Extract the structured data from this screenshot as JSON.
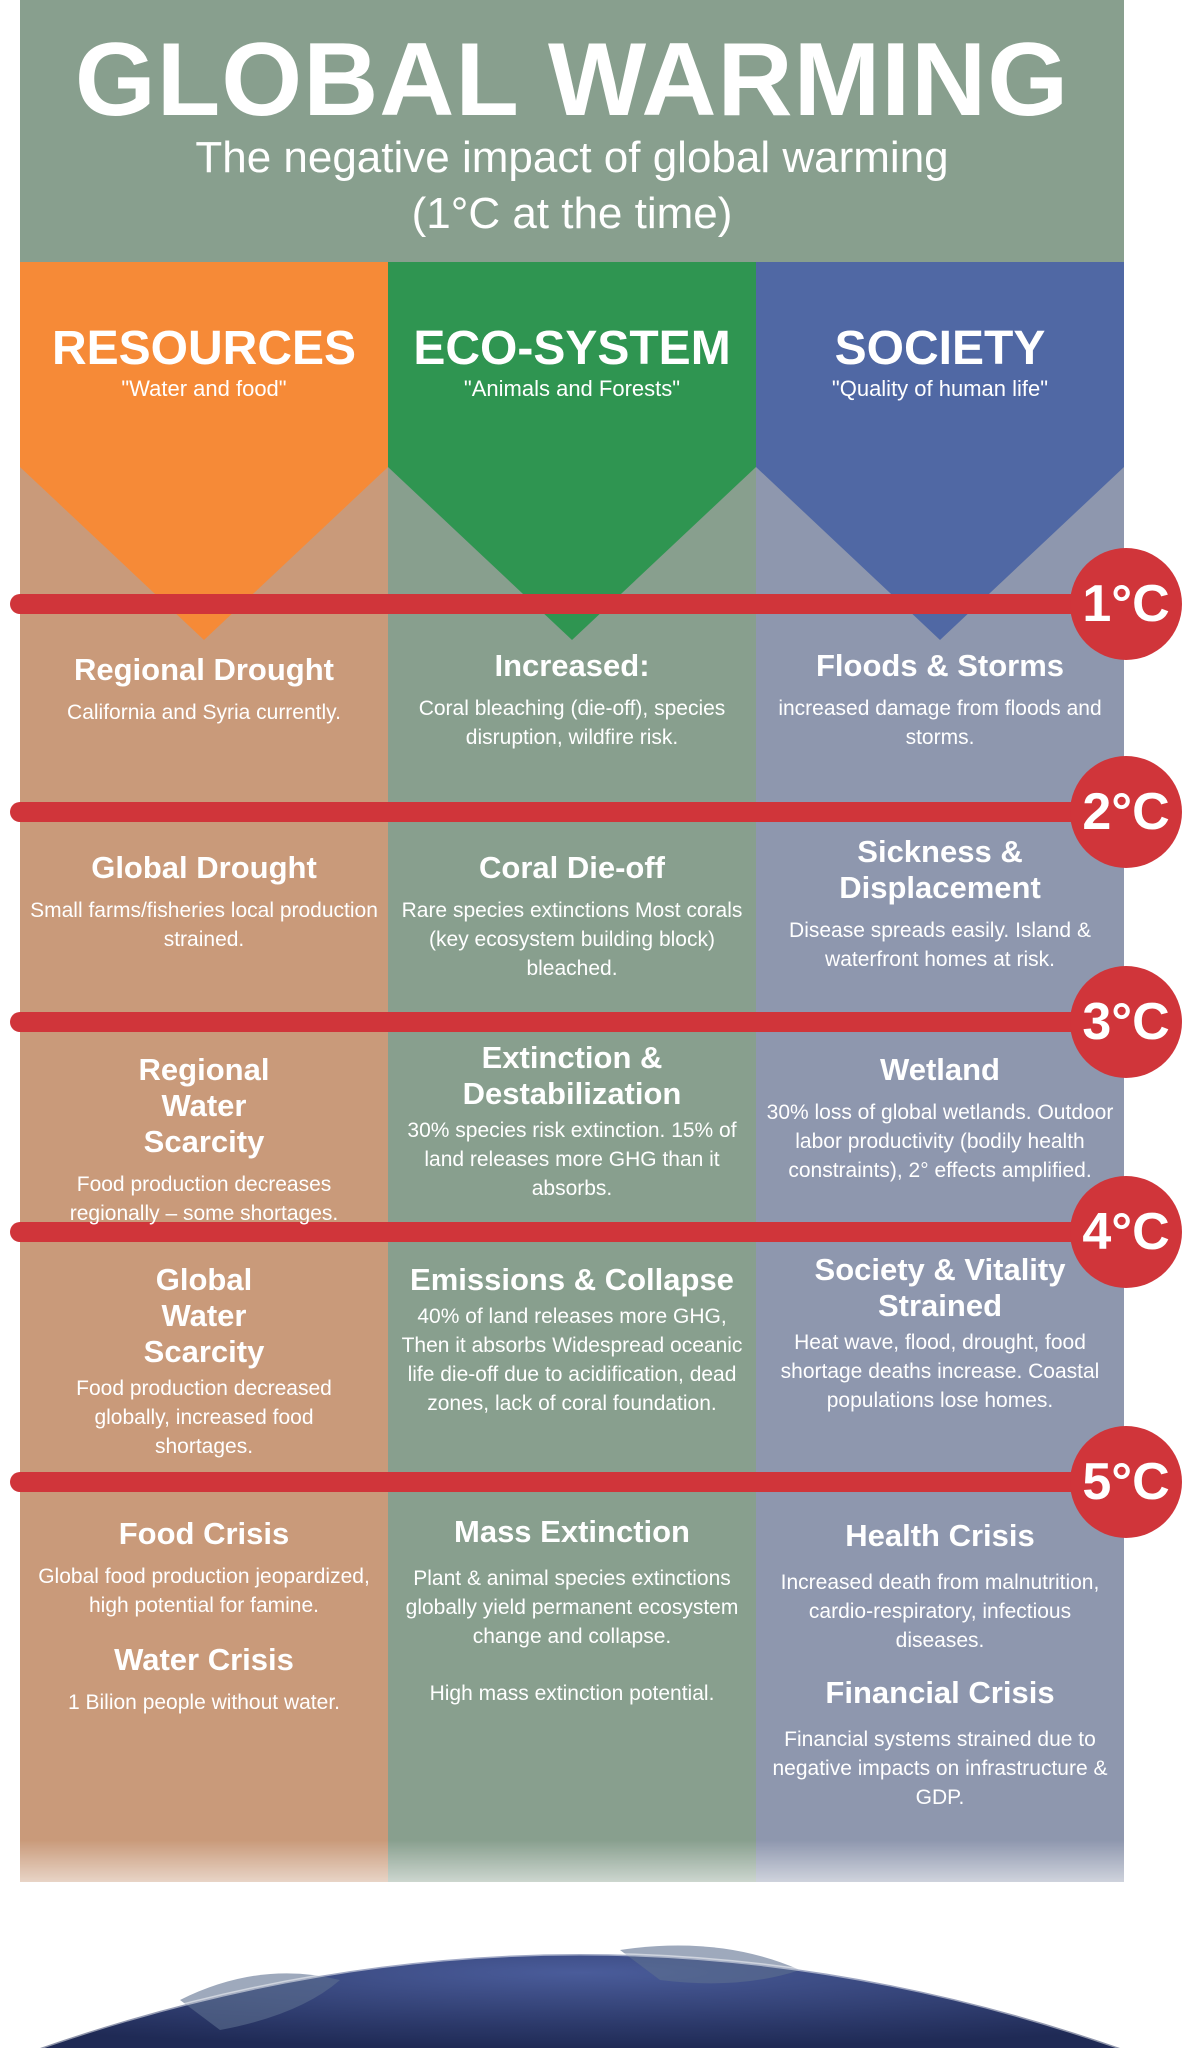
{
  "header": {
    "title": "GLOBAL WARMING",
    "subtitle_line1": "The negative impact of global warming",
    "subtitle_line2": "(1°C at the time)"
  },
  "colors": {
    "resources": "#f68a37",
    "ecosystem": "#2f9551",
    "society": "#5068a4",
    "bar": "#d0353a",
    "header_bg": "#889f8e"
  },
  "columns": {
    "resources": {
      "title": "RESOURCES",
      "subtitle": "\"Water and food\""
    },
    "ecosystem": {
      "title": "ECO-SYSTEM",
      "subtitle": "\"Animals and Forests\""
    },
    "society": {
      "title": "SOCIETY",
      "subtitle": "\"Quality of human life\""
    }
  },
  "levels": [
    "1°C",
    "2°C",
    "3°C",
    "4°C",
    "5°C"
  ],
  "rows": {
    "r1": {
      "res": {
        "title": "Regional Drought",
        "text": "California and Syria currently."
      },
      "eco": {
        "title": "Increased:",
        "text": "Coral bleaching (die-off), species disruption, wildfire risk."
      },
      "soc": {
        "title": "Floods & Storms",
        "text": "increased damage from floods and storms."
      }
    },
    "r2": {
      "res": {
        "title": "Global Drought",
        "text": "Small farms/fisheries local production strained."
      },
      "eco": {
        "title": "Coral Die-off",
        "text": "Rare species extinctions Most corals (key ecosystem building block) bleached."
      },
      "soc": {
        "title": "Sickness & Displacement",
        "text": "Disease spreads easily. Island & waterfront homes at risk."
      }
    },
    "r3": {
      "res": {
        "title": "Regional Water Scarcity",
        "text": "Food production decreases regionally – some shortages."
      },
      "eco": {
        "title": "Extinction & Destabilization",
        "text": "30% species risk extinction. 15% of land releases more GHG than it absorbs."
      },
      "soc": {
        "title": "Wetland",
        "text": "30% loss of global wetlands. Outdoor labor productivity (bodily health constraints), 2° effects amplified."
      }
    },
    "r4": {
      "res": {
        "title": "Global Water Scarcity",
        "text": "Food production decreased globally, increased food shortages."
      },
      "eco": {
        "title": "Emissions & Collapse",
        "text": "40% of land releases more GHG, Then it absorbs Widespread oceanic life die-off due to acidification, dead zones, lack of coral foundation."
      },
      "soc": {
        "title": "Society & Vitality Strained",
        "text": "Heat wave, flood, drought, food shortage deaths increase. Coastal populations lose homes."
      }
    },
    "r5": {
      "res": {
        "title": "Food Crisis",
        "text": "Global food production jeopardized, high potential for famine.",
        "title2": "Water Crisis",
        "text2": "1 Bilion people without water."
      },
      "eco": {
        "title": "Mass Extinction",
        "text": "Plant & animal species extinctions globally yield permanent ecosystem change and collapse.",
        "text2": "High mass extinction potential."
      },
      "soc": {
        "title": "Health Crisis",
        "text": "Increased death from malnutrition, cardio-respiratory, infectious diseases.",
        "title2": "Financial Crisis",
        "text2": "Financial systems strained due to negative impacts on infrastructure & GDP."
      }
    }
  }
}
